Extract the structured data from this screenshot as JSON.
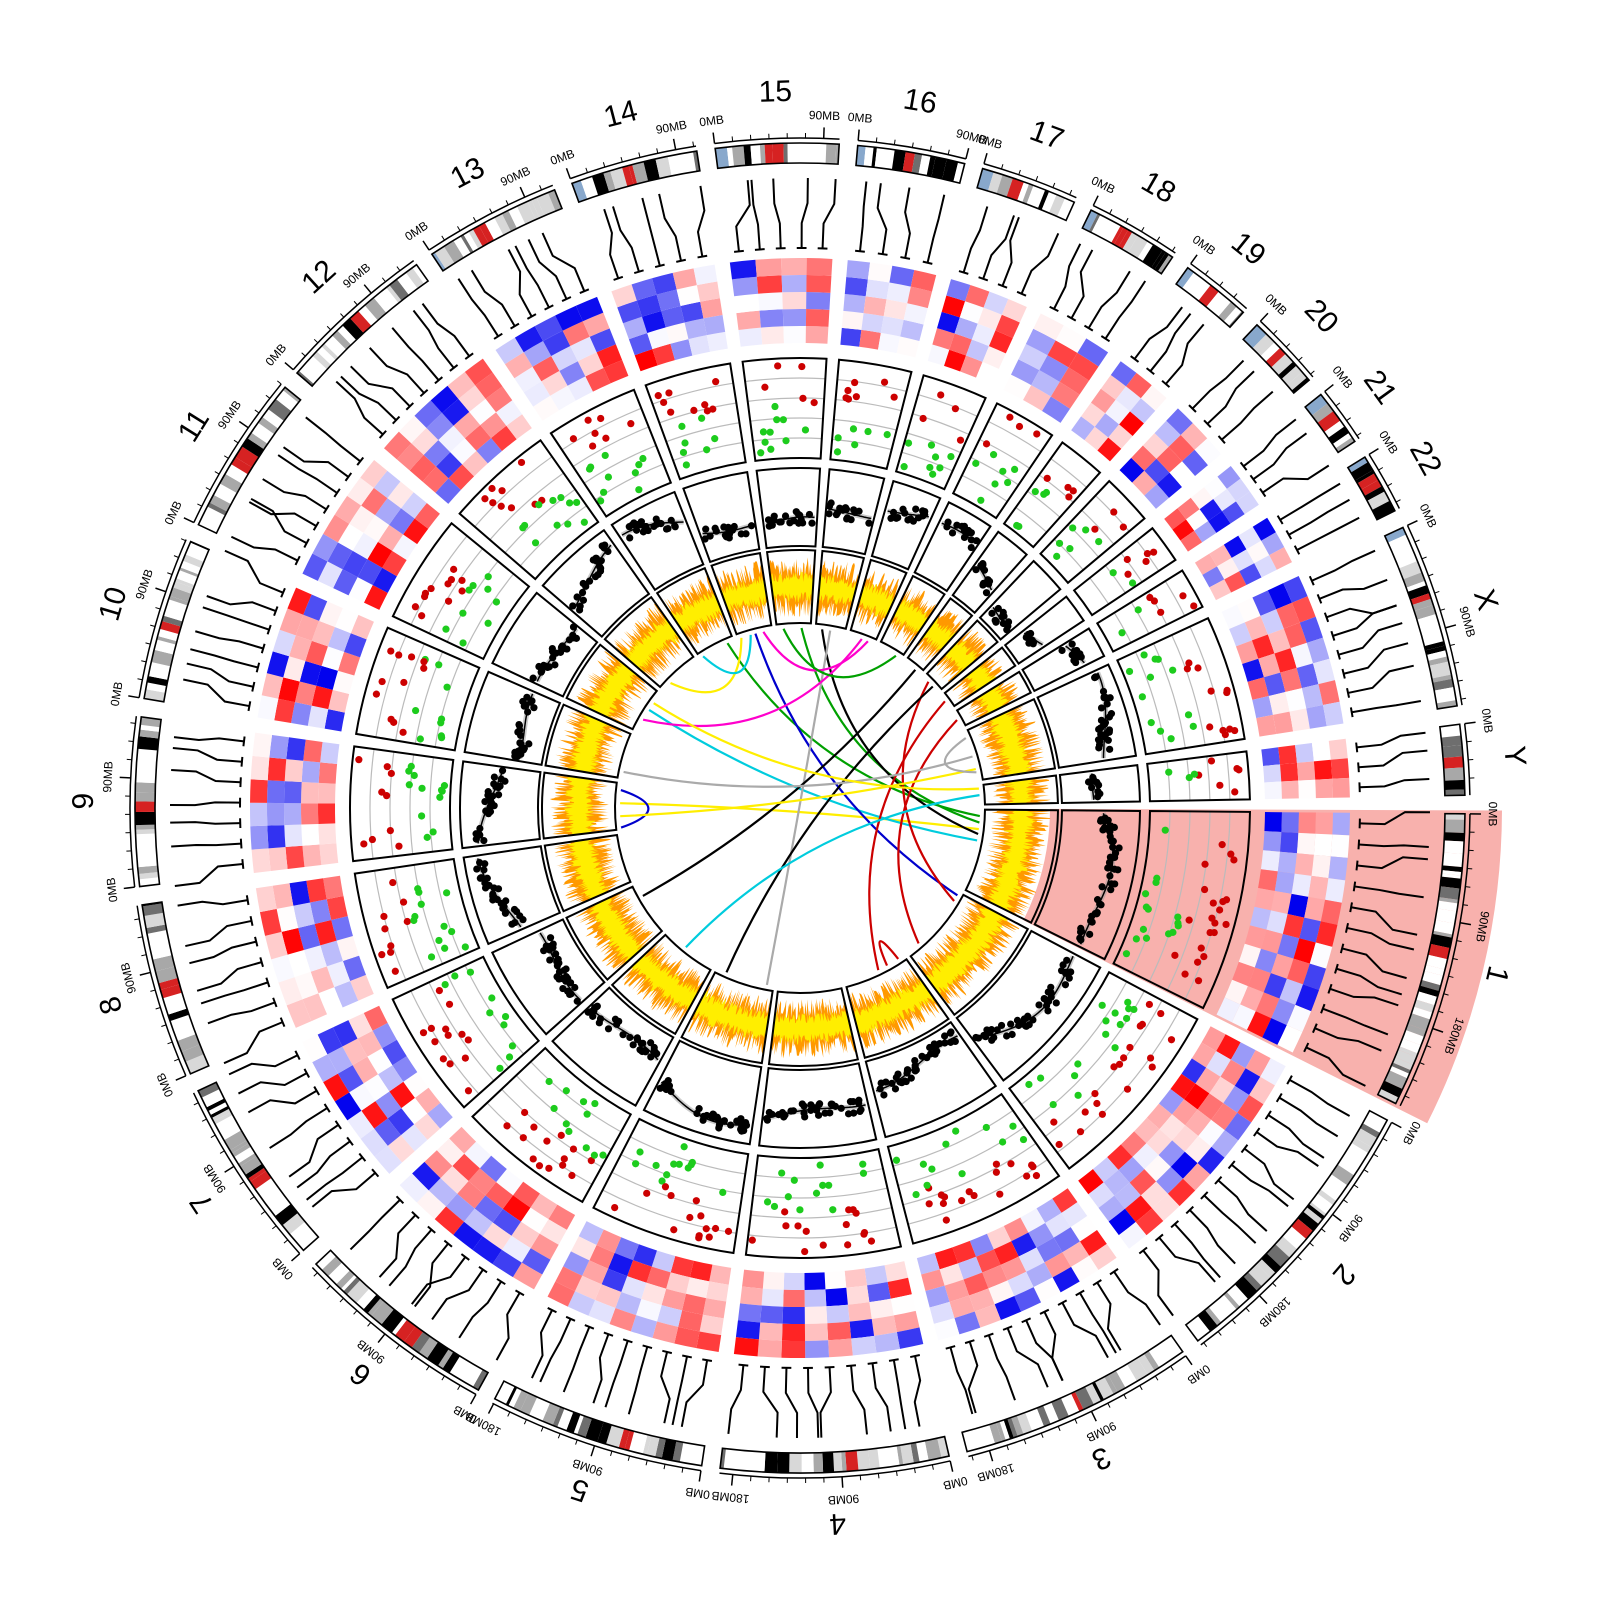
{
  "chromosomes": [
    {
      "name": "1",
      "length_mb": 249,
      "highlighted": true
    },
    {
      "name": "2",
      "length_mb": 243,
      "highlighted": false
    },
    {
      "name": "3",
      "length_mb": 198,
      "highlighted": false
    },
    {
      "name": "4",
      "length_mb": 191,
      "highlighted": false
    },
    {
      "name": "5",
      "length_mb": 181,
      "highlighted": false
    },
    {
      "name": "6",
      "length_mb": 171,
      "highlighted": false
    },
    {
      "name": "7",
      "length_mb": 159,
      "highlighted": false
    },
    {
      "name": "8",
      "length_mb": 146,
      "highlighted": false
    },
    {
      "name": "9",
      "length_mb": 141,
      "highlighted": false
    },
    {
      "name": "10",
      "length_mb": 136,
      "highlighted": false
    },
    {
      "name": "11",
      "length_mb": 135,
      "highlighted": false
    },
    {
      "name": "12",
      "length_mb": 134,
      "highlighted": false
    },
    {
      "name": "13",
      "length_mb": 115,
      "highlighted": false
    },
    {
      "name": "14",
      "length_mb": 107,
      "highlighted": false
    },
    {
      "name": "15",
      "length_mb": 103,
      "highlighted": false
    },
    {
      "name": "16",
      "length_mb": 90,
      "highlighted": false
    },
    {
      "name": "17",
      "length_mb": 81,
      "highlighted": false
    },
    {
      "name": "18",
      "length_mb": 78,
      "highlighted": false
    },
    {
      "name": "19",
      "length_mb": 59,
      "highlighted": false
    },
    {
      "name": "20",
      "length_mb": 63,
      "highlighted": false
    },
    {
      "name": "21",
      "length_mb": 48,
      "highlighted": false
    },
    {
      "name": "22",
      "length_mb": 51,
      "highlighted": false
    },
    {
      "name": "X",
      "length_mb": 155,
      "highlighted": false
    },
    {
      "name": "Y",
      "length_mb": 59,
      "highlighted": false
    }
  ],
  "tick_labels": [
    "0MB",
    "90MB",
    "180MB"
  ],
  "tick_step_mb": 90,
  "colors": {
    "highlight": "#f7a9a4",
    "scatter_high": "#cc0000",
    "scatter_low": "#1dcc1d",
    "line_points": "#000000",
    "area_outer": "#ff9900",
    "area_inner": "#ffee00",
    "heat_high": "#ff0000",
    "heat_low": "#0000ee",
    "band_palette": [
      "#ffffff",
      "#d8d8d8",
      "#a8a8a8",
      "#6e6e6e",
      "#000000",
      "#d62222",
      "#88a8cc"
    ]
  },
  "links": [
    {
      "from": [
        "1",
        20
      ],
      "to": [
        "13",
        95
      ],
      "color": "#00a000"
    },
    {
      "from": [
        "1",
        40
      ],
      "to": [
        "15",
        75
      ],
      "color": "#00a000"
    },
    {
      "from": [
        "1",
        60
      ],
      "to": [
        "9",
        80
      ],
      "color": "#ffee00"
    },
    {
      "from": [
        "1",
        75
      ],
      "to": [
        "16",
        20
      ],
      "color": "#000000"
    },
    {
      "from": [
        "1",
        95
      ],
      "to": [
        "11",
        75
      ],
      "color": "#00ccdd"
    },
    {
      "from": [
        "2",
        10
      ],
      "to": [
        "14",
        55
      ],
      "color": "#0000cc"
    },
    {
      "from": [
        "2",
        30
      ],
      "to": [
        "20",
        20
      ],
      "color": "#cc0000"
    },
    {
      "from": [
        "2",
        200
      ],
      "to": [
        "22",
        25
      ],
      "color": "#cc0000"
    },
    {
      "from": [
        "3",
        20
      ],
      "to": [
        "3",
        60
      ],
      "color": "#cc0000"
    },
    {
      "from": [
        "3",
        90
      ],
      "to": [
        "21",
        20
      ],
      "color": "#cc0000"
    },
    {
      "from": [
        "5",
        20
      ],
      "to": [
        "16",
        45
      ],
      "color": "#aaaaaa"
    },
    {
      "from": [
        "5",
        150
      ],
      "to": [
        "20",
        40
      ],
      "color": "#000000"
    },
    {
      "from": [
        "6",
        100
      ],
      "to": [
        "Y",
        30
      ],
      "color": "#00ccdd"
    },
    {
      "from": [
        "7",
        120
      ],
      "to": [
        "19",
        40
      ],
      "color": "#000000"
    },
    {
      "from": [
        "9",
        5
      ],
      "to": [
        "9",
        120
      ],
      "color": "#0000cc"
    },
    {
      "from": [
        "9",
        40
      ],
      "to": [
        "X",
        120
      ],
      "color": "#ffee00"
    },
    {
      "from": [
        "10",
        20
      ],
      "to": [
        "X",
        80
      ],
      "color": "#aaaaaa"
    },
    {
      "from": [
        "11",
        40
      ],
      "to": [
        "17",
        40
      ],
      "color": "#ff00cc"
    },
    {
      "from": [
        "12",
        30
      ],
      "to": [
        "14",
        10
      ],
      "color": "#ffee00"
    },
    {
      "from": [
        "13",
        10
      ],
      "to": [
        "14",
        40
      ],
      "color": "#00ccdd"
    },
    {
      "from": [
        "14",
        80
      ],
      "to": [
        "17",
        60
      ],
      "color": "#ff00cc"
    },
    {
      "from": [
        "15",
        20
      ],
      "to": [
        "18",
        60
      ],
      "color": "#00a000"
    },
    {
      "from": [
        "X",
        20
      ],
      "to": [
        "X",
        130
      ],
      "color": "#aaaaaa"
    },
    {
      "from": [
        "Y",
        10
      ],
      "to": [
        "11",
        100
      ],
      "color": "#ffee00"
    }
  ]
}
